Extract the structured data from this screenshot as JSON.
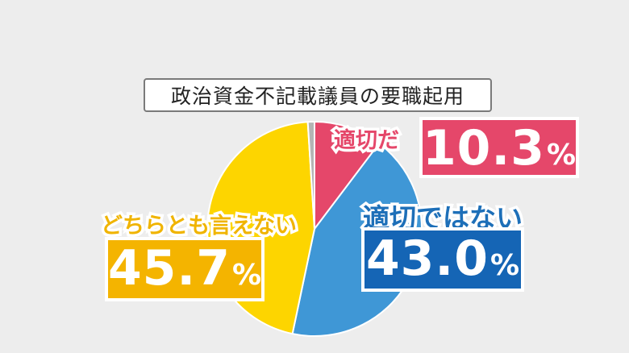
{
  "chart_data": {
    "type": "pie",
    "title": "政治資金不記載議員の要職起用",
    "slices": [
      {
        "label": "適切だ",
        "value": 10.3,
        "display": "10.3",
        "unit": "%",
        "color": "#e5476a"
      },
      {
        "label": "適切ではない",
        "value": 43.0,
        "display": "43.0",
        "unit": "%",
        "color": "#3f97d6"
      },
      {
        "label": "どちらとも言えない",
        "value": 45.7,
        "display": "45.7",
        "unit": "%",
        "color": "#fdd500"
      },
      {
        "label": "",
        "value": 1.0,
        "display": "",
        "unit": "",
        "color": "#b4b4b4"
      }
    ],
    "label_colors": {
      "適切だ": "#e5476a",
      "適切ではない": "#1d6fb8",
      "どちらとも言えない": "#f0b400"
    }
  }
}
